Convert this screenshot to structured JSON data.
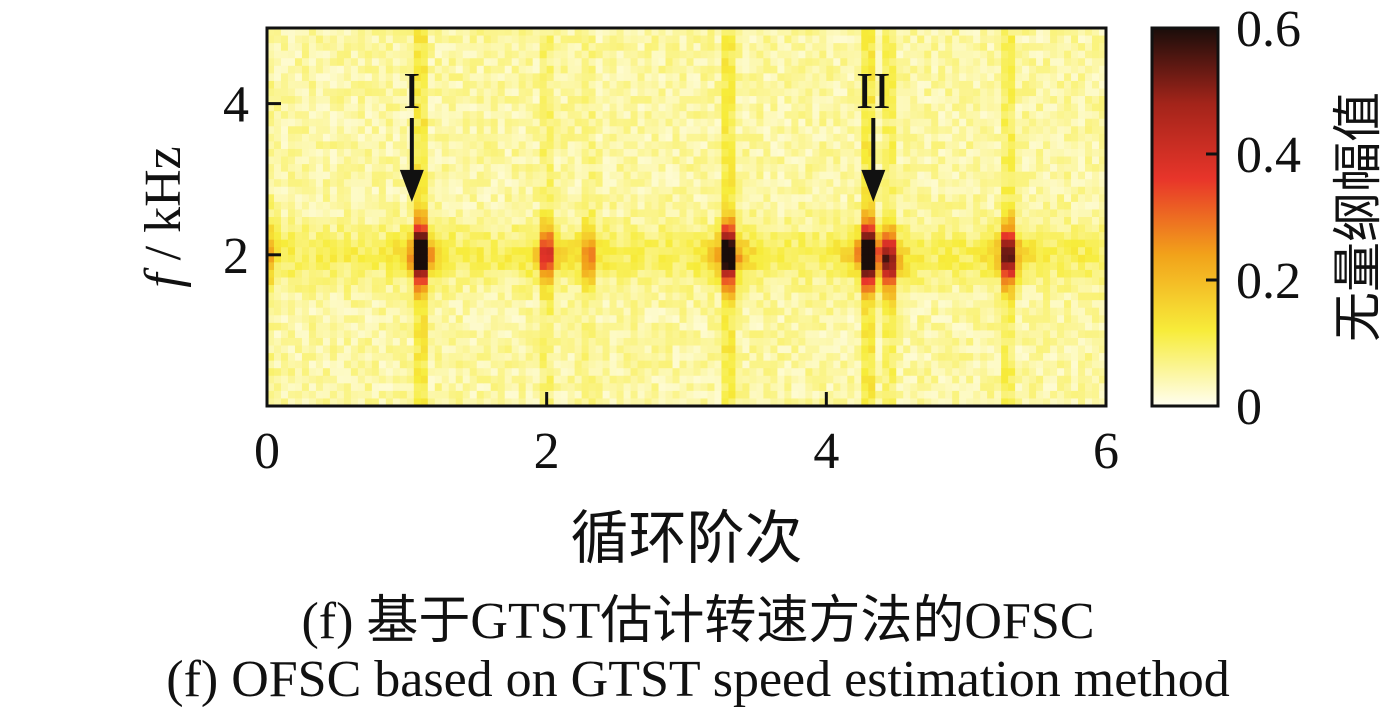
{
  "chart_data": {
    "type": "heatmap",
    "xlabel": "循环阶次",
    "ylabel_italic": "f",
    "ylabel_rest": " / kHz",
    "xlim": [
      0,
      6
    ],
    "ylim": [
      0,
      5
    ],
    "x_ticks": [
      0,
      2,
      4,
      6
    ],
    "x_tick_labels": [
      "0",
      "2",
      "4",
      "6"
    ],
    "y_ticks": [
      2,
      4
    ],
    "y_tick_labels": [
      "2",
      "4"
    ],
    "colorbar": {
      "label": "无量纲幅值",
      "range": [
        0,
        0.6
      ],
      "ticks": [
        0,
        0.2,
        0.4,
        0.6
      ],
      "tick_labels": [
        "0",
        "0.2",
        "0.4",
        "0.6"
      ],
      "colormap": [
        "#fffef0",
        "#f7ec3a",
        "#f2a21a",
        "#e8352a",
        "#a3241a",
        "#1a0d0a"
      ]
    },
    "background_level": 0.05,
    "bands": [
      {
        "order": 0.0,
        "freq_khz": 2.0,
        "amplitude": 0.12
      },
      {
        "order": 1.1,
        "freq_khz": 2.0,
        "amplitude": 0.6
      },
      {
        "order": 2.0,
        "freq_khz": 2.0,
        "amplitude": 0.25
      },
      {
        "order": 2.3,
        "freq_khz": 2.0,
        "amplitude": 0.15
      },
      {
        "order": 3.3,
        "freq_khz": 2.0,
        "amplitude": 0.55
      },
      {
        "order": 4.3,
        "freq_khz": 2.0,
        "amplitude": 0.6
      },
      {
        "order": 4.45,
        "freq_khz": 1.9,
        "amplitude": 0.35
      },
      {
        "order": 5.3,
        "freq_khz": 2.0,
        "amplitude": 0.4
      }
    ],
    "annotations": [
      {
        "label": "I",
        "order": 0.95,
        "arrow_tip_khz": 2.7
      },
      {
        "label": "II",
        "order": 4.25,
        "arrow_tip_khz": 2.7
      }
    ]
  },
  "captions": {
    "cn": "(f)  基于GTST估计转速方法的OFSC",
    "en": "(f)  OFSC based on GTST speed estimation method"
  }
}
